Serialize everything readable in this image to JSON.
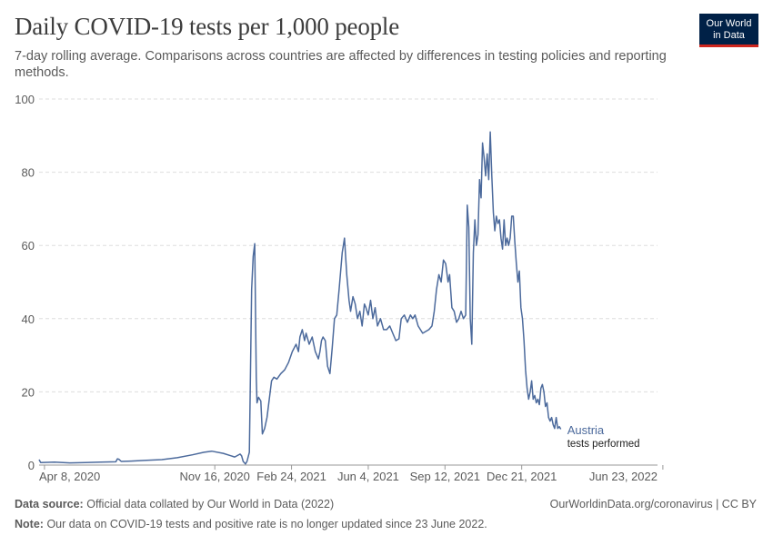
{
  "header": {
    "title": "Daily COVID-19 tests per 1,000 people",
    "subtitle": "7-day rolling average. Comparisons across countries are affected by differences in testing policies and reporting methods.",
    "logo_line1": "Our World",
    "logo_line2": "in Data"
  },
  "footer": {
    "source_label": "Data source:",
    "source_text": "Official data collated by Our World in Data (2022)",
    "link_text": "OurWorldinData.org/coronavirus | CC BY",
    "note_label": "Note:",
    "note_text": "Our data on COVID-19 tests and positive rate is no longer updated since 23 June 2022."
  },
  "colors": {
    "series": "#4c6a9c",
    "grid": "#dddddd",
    "axis": "#999999",
    "text": "#5b5b5b"
  },
  "chart_data": {
    "type": "line",
    "title": "Daily COVID-19 tests per 1,000 people",
    "xlabel": "",
    "ylabel": "",
    "ylim": [
      0,
      100
    ],
    "yticks": [
      0,
      20,
      40,
      60,
      80,
      100
    ],
    "xrange_days": [
      0,
      806
    ],
    "x_unit": "days since Apr 1, 2020",
    "xticks": [
      {
        "day": 7,
        "label": "Apr 8, 2020"
      },
      {
        "day": 229,
        "label": "Nov 16, 2020"
      },
      {
        "day": 329,
        "label": "Feb 24, 2021"
      },
      {
        "day": 429,
        "label": "Jun 4, 2021"
      },
      {
        "day": 529,
        "label": "Sep 12, 2021"
      },
      {
        "day": 629,
        "label": "Dec 21, 2021"
      },
      {
        "day": 813,
        "label": "Jun 23, 2022"
      }
    ],
    "grid": true,
    "series": [
      {
        "name": "Austria",
        "label_sub": "tests performed",
        "points": [
          [
            0,
            1.5
          ],
          [
            2,
            0.7
          ],
          [
            20,
            0.8
          ],
          [
            40,
            0.6
          ],
          [
            60,
            0.7
          ],
          [
            80,
            0.8
          ],
          [
            100,
            0.9
          ],
          [
            102,
            1.7
          ],
          [
            104,
            1.6
          ],
          [
            107,
            1.0
          ],
          [
            120,
            1.1
          ],
          [
            140,
            1.3
          ],
          [
            160,
            1.5
          ],
          [
            180,
            2.0
          ],
          [
            200,
            2.8
          ],
          [
            215,
            3.5
          ],
          [
            225,
            3.8
          ],
          [
            240,
            3.2
          ],
          [
            255,
            2.2
          ],
          [
            262,
            3.0
          ],
          [
            264,
            2.5
          ],
          [
            266,
            1.0
          ],
          [
            269,
            0.3
          ],
          [
            271,
            1.0
          ],
          [
            274,
            3.5
          ],
          [
            277,
            48
          ],
          [
            279,
            57
          ],
          [
            281,
            60.5
          ],
          [
            283,
            24
          ],
          [
            284,
            17
          ],
          [
            286,
            18.5
          ],
          [
            289,
            17.5
          ],
          [
            291,
            8.5
          ],
          [
            294,
            10
          ],
          [
            297,
            13
          ],
          [
            300,
            18
          ],
          [
            303,
            23
          ],
          [
            306,
            24
          ],
          [
            310,
            23.5
          ],
          [
            315,
            25
          ],
          [
            320,
            26
          ],
          [
            325,
            28
          ],
          [
            330,
            31
          ],
          [
            335,
            33
          ],
          [
            338,
            31
          ],
          [
            340,
            35
          ],
          [
            343,
            37
          ],
          [
            346,
            34
          ],
          [
            348,
            36
          ],
          [
            352,
            33
          ],
          [
            356,
            35
          ],
          [
            360,
            31
          ],
          [
            364,
            29
          ],
          [
            366,
            31
          ],
          [
            368,
            34
          ],
          [
            370,
            35
          ],
          [
            373,
            34
          ],
          [
            376,
            27
          ],
          [
            379,
            25
          ],
          [
            382,
            32
          ],
          [
            385,
            40
          ],
          [
            388,
            41
          ],
          [
            391,
            48
          ],
          [
            395,
            58
          ],
          [
            398,
            62
          ],
          [
            401,
            52
          ],
          [
            404,
            45
          ],
          [
            406,
            42
          ],
          [
            409,
            46
          ],
          [
            412,
            44
          ],
          [
            415,
            40
          ],
          [
            418,
            42
          ],
          [
            421,
            38
          ],
          [
            424,
            44
          ],
          [
            426,
            43
          ],
          [
            429,
            41
          ],
          [
            432,
            45
          ],
          [
            435,
            40
          ],
          [
            438,
            43
          ],
          [
            441,
            38
          ],
          [
            445,
            40
          ],
          [
            449,
            37
          ],
          [
            453,
            37
          ],
          [
            457,
            38
          ],
          [
            461,
            36
          ],
          [
            465,
            34
          ],
          [
            469,
            34.5
          ],
          [
            472,
            40
          ],
          [
            476,
            41
          ],
          [
            480,
            39
          ],
          [
            484,
            41
          ],
          [
            487,
            40
          ],
          [
            490,
            41
          ],
          [
            494,
            38
          ],
          [
            497,
            37
          ],
          [
            500,
            36
          ],
          [
            504,
            36.5
          ],
          [
            508,
            37
          ],
          [
            512,
            38
          ],
          [
            515,
            42
          ],
          [
            518,
            48
          ],
          [
            521,
            52
          ],
          [
            524,
            50
          ],
          [
            527,
            56
          ],
          [
            530,
            55
          ],
          [
            533,
            50
          ],
          [
            535,
            52
          ],
          [
            538,
            43
          ],
          [
            541,
            42
          ],
          [
            544,
            39
          ],
          [
            547,
            40
          ],
          [
            550,
            42
          ],
          [
            553,
            40
          ],
          [
            556,
            41
          ],
          [
            558,
            71
          ],
          [
            560,
            65
          ],
          [
            562,
            40
          ],
          [
            564,
            33
          ],
          [
            566,
            58
          ],
          [
            568,
            67
          ],
          [
            570,
            60
          ],
          [
            572,
            63
          ],
          [
            574,
            78
          ],
          [
            576,
            73
          ],
          [
            578,
            88
          ],
          [
            580,
            84
          ],
          [
            582,
            79
          ],
          [
            584,
            85
          ],
          [
            586,
            78
          ],
          [
            588,
            91
          ],
          [
            590,
            79
          ],
          [
            592,
            69
          ],
          [
            594,
            64
          ],
          [
            596,
            68
          ],
          [
            598,
            66
          ],
          [
            600,
            67
          ],
          [
            602,
            62
          ],
          [
            604,
            59
          ],
          [
            606,
            67
          ],
          [
            608,
            60
          ],
          [
            610,
            62
          ],
          [
            612,
            60
          ],
          [
            614,
            62
          ],
          [
            616,
            68
          ],
          [
            618,
            68
          ],
          [
            620,
            61
          ],
          [
            622,
            55
          ],
          [
            624,
            50
          ],
          [
            626,
            53
          ],
          [
            628,
            43
          ],
          [
            630,
            40
          ],
          [
            632,
            34
          ],
          [
            634,
            26
          ],
          [
            636,
            21
          ],
          [
            638,
            18
          ],
          [
            640,
            20
          ],
          [
            642,
            23
          ],
          [
            644,
            18
          ],
          [
            646,
            19
          ],
          [
            648,
            17
          ],
          [
            650,
            18
          ],
          [
            652,
            16.5
          ],
          [
            654,
            21
          ],
          [
            656,
            22
          ],
          [
            658,
            20
          ],
          [
            660,
            16
          ],
          [
            662,
            17
          ],
          [
            664,
            13
          ],
          [
            666,
            12
          ],
          [
            668,
            13
          ],
          [
            670,
            11
          ],
          [
            672,
            10
          ],
          [
            674,
            13
          ],
          [
            676,
            10
          ],
          [
            678,
            10.5
          ],
          [
            680,
            9.8
          ]
        ]
      }
    ]
  }
}
